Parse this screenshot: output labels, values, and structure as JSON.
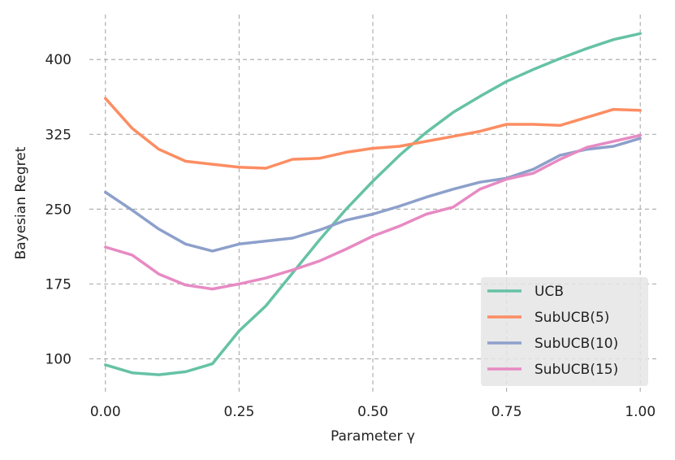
{
  "chart_data": {
    "type": "line",
    "xlabel": "Parameter γ",
    "ylabel": "Bayesian Regret",
    "xlim": [
      -0.03,
      1.03
    ],
    "ylim": [
      67,
      445
    ],
    "x_ticks": [
      0.0,
      0.25,
      0.5,
      0.75,
      1.0
    ],
    "x_tick_labels": [
      "0.00",
      "0.25",
      "0.50",
      "0.75",
      "1.00"
    ],
    "y_ticks": [
      100,
      175,
      250,
      325,
      400
    ],
    "y_tick_labels": [
      "100",
      "175",
      "250",
      "325",
      "400"
    ],
    "grid": true,
    "legend_position": "bottom-right",
    "x": [
      0.0,
      0.05,
      0.1,
      0.15,
      0.2,
      0.25,
      0.3,
      0.35,
      0.4,
      0.45,
      0.5,
      0.55,
      0.6,
      0.65,
      0.7,
      0.75,
      0.8,
      0.85,
      0.9,
      0.95,
      1.0
    ],
    "series": [
      {
        "name": "UCB",
        "color": "#66c2a5",
        "values": [
          94,
          86,
          84,
          87,
          95,
          128,
          153,
          186,
          219,
          250,
          278,
          304,
          327,
          347,
          363,
          378,
          390,
          401,
          411,
          420,
          426
        ]
      },
      {
        "name": "SubUCB(5)",
        "color": "#fc8d62",
        "values": [
          361,
          331,
          310,
          298,
          295,
          292,
          291,
          300,
          301,
          307,
          311,
          313,
          318,
          323,
          328,
          335,
          335,
          334,
          342,
          350,
          349
        ]
      },
      {
        "name": "SubUCB(10)",
        "color": "#8da0cb",
        "values": [
          267,
          249,
          230,
          215,
          208,
          215,
          218,
          221,
          229,
          239,
          245,
          253,
          262,
          270,
          277,
          281,
          290,
          304,
          310,
          313,
          321
        ]
      },
      {
        "name": "SubUCB(15)",
        "color": "#e78ac3",
        "values": [
          212,
          204,
          185,
          174,
          170,
          175,
          181,
          189,
          198,
          210,
          223,
          233,
          245,
          252,
          270,
          280,
          286,
          300,
          312,
          318,
          324
        ]
      }
    ]
  }
}
